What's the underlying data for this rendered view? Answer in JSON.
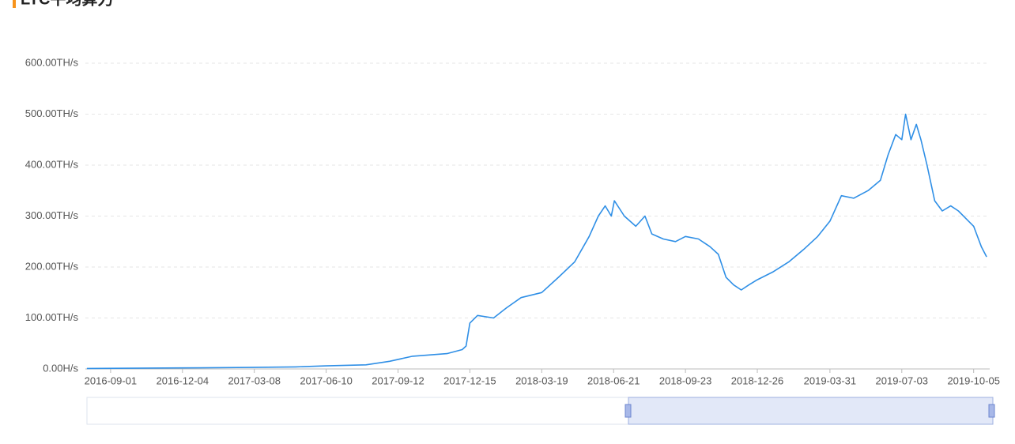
{
  "chart_data": {
    "type": "line",
    "title": "LTC平均算力",
    "x": [
      "2016-08-01",
      "2016-12-01",
      "2017-03-01",
      "2017-05-01",
      "2017-06-10",
      "2017-08-01",
      "2017-09-01",
      "2017-10-01",
      "2017-11-15",
      "2017-12-05",
      "2017-12-10",
      "2017-12-15",
      "2017-12-25",
      "2018-01-15",
      "2018-02-01",
      "2018-02-20",
      "2018-03-19",
      "2018-04-10",
      "2018-05-01",
      "2018-05-20",
      "2018-06-01",
      "2018-06-10",
      "2018-06-18",
      "2018-06-22",
      "2018-07-05",
      "2018-07-20",
      "2018-08-01",
      "2018-08-10",
      "2018-08-25",
      "2018-09-10",
      "2018-09-23",
      "2018-10-10",
      "2018-10-25",
      "2018-11-05",
      "2018-11-15",
      "2018-11-25",
      "2018-12-05",
      "2018-12-15",
      "2018-12-26",
      "2019-01-15",
      "2019-02-05",
      "2019-02-25",
      "2019-03-15",
      "2019-03-31",
      "2019-04-15",
      "2019-05-01",
      "2019-05-20",
      "2019-06-05",
      "2019-06-15",
      "2019-06-25",
      "2019-07-03",
      "2019-07-08",
      "2019-07-15",
      "2019-07-22",
      "2019-07-28",
      "2019-08-05",
      "2019-08-15",
      "2019-08-25",
      "2019-09-05",
      "2019-09-15",
      "2019-09-25",
      "2019-10-05",
      "2019-10-15",
      "2019-10-22"
    ],
    "series": [
      {
        "color": "#2f8fe6",
        "values": [
          1,
          2,
          3,
          4,
          6,
          8,
          15,
          25,
          30,
          38,
          45,
          90,
          105,
          100,
          120,
          140,
          150,
          180,
          210,
          260,
          300,
          320,
          300,
          330,
          300,
          280,
          300,
          265,
          255,
          250,
          260,
          255,
          240,
          225,
          180,
          165,
          155,
          165,
          175,
          190,
          210,
          235,
          260,
          290,
          340,
          335,
          350,
          370,
          420,
          460,
          450,
          500,
          450,
          480,
          450,
          400,
          330,
          310,
          320,
          310,
          295,
          280,
          240,
          220
        ]
      }
    ],
    "xlim": [
      "2016-07-30",
      "2019-10-26"
    ],
    "xticks": [
      "2016-09-01",
      "2016-12-04",
      "2017-03-08",
      "2017-06-10",
      "2017-09-12",
      "2017-12-15",
      "2018-03-19",
      "2018-06-21",
      "2018-09-23",
      "2018-12-26",
      "2019-03-31",
      "2019-07-03",
      "2019-10-05"
    ],
    "ylim": [
      0,
      600
    ],
    "yticks": [
      {
        "value": 0,
        "label": "0.00H/s"
      },
      {
        "value": 100,
        "label": "100.00TH/s"
      },
      {
        "value": 200,
        "label": "200.00TH/s"
      },
      {
        "value": 300,
        "label": "300.00TH/s"
      },
      {
        "value": 400,
        "label": "400.00TH/s"
      },
      {
        "value": 500,
        "label": "500.00TH/s"
      },
      {
        "value": 600,
        "label": "600.00TH/s"
      }
    ],
    "grid": true
  }
}
